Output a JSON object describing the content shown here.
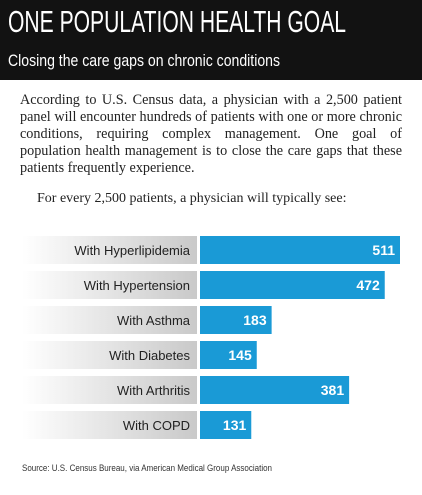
{
  "header": {
    "title": "ONE POPULATION HEALTH GOAL",
    "subtitle": "Closing the care gaps on chronic conditions"
  },
  "intro": "According to U.S. Census data, a physician with a 2,500 patient panel will encounter hundreds of patients with one or more chronic conditions, requiring complex management. One goal of population health management is to close the care gaps that these patients frequently experience.",
  "chart_data": {
    "type": "bar",
    "orientation": "horizontal",
    "title": "For every 2,500 patients, a physician will typically see:",
    "categories": [
      "With Hyperlipidemia",
      "With Hypertension",
      "With Asthma",
      "With Diabetes",
      "With Arthritis",
      "With COPD"
    ],
    "values": [
      511,
      472,
      183,
      145,
      381,
      131
    ],
    "color": "#1a9ad6"
  },
  "source": "Source: U.S. Census Bureau, via American Medical Group Association"
}
